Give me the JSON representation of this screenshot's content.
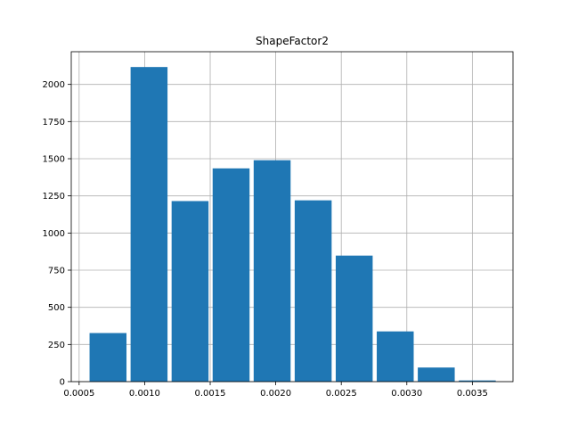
{
  "chart_data": {
    "type": "bar",
    "title": "ShapeFactor2",
    "xlabel": "",
    "ylabel": "",
    "xlim": [
      0.00044,
      0.00381
    ],
    "ylim": [
      0,
      2220
    ],
    "grid": true,
    "bar_color": "#1f77b4",
    "bar_width_fraction": 0.9,
    "bins": [
      {
        "start": 0.000564,
        "end": 0.000877,
        "count": 327
      },
      {
        "start": 0.000877,
        "end": 0.00119,
        "count": 2117
      },
      {
        "start": 0.00119,
        "end": 0.001503,
        "count": 1215
      },
      {
        "start": 0.001503,
        "end": 0.001816,
        "count": 1435
      },
      {
        "start": 0.001816,
        "end": 0.002129,
        "count": 1490
      },
      {
        "start": 0.002129,
        "end": 0.002442,
        "count": 1220
      },
      {
        "start": 0.002442,
        "end": 0.002755,
        "count": 848
      },
      {
        "start": 0.002755,
        "end": 0.003068,
        "count": 338
      },
      {
        "start": 0.003068,
        "end": 0.003381,
        "count": 95
      },
      {
        "start": 0.003381,
        "end": 0.003694,
        "count": 8
      }
    ],
    "x_ticks": [
      {
        "value": 0.0005,
        "label": "0.0005"
      },
      {
        "value": 0.001,
        "label": "0.0010"
      },
      {
        "value": 0.0015,
        "label": "0.0015"
      },
      {
        "value": 0.002,
        "label": "0.0020"
      },
      {
        "value": 0.0025,
        "label": "0.0025"
      },
      {
        "value": 0.003,
        "label": "0.0030"
      },
      {
        "value": 0.0035,
        "label": "0.0035"
      }
    ],
    "y_ticks": [
      {
        "value": 0,
        "label": "0"
      },
      {
        "value": 250,
        "label": "250"
      },
      {
        "value": 500,
        "label": "500"
      },
      {
        "value": 750,
        "label": "750"
      },
      {
        "value": 1000,
        "label": "1000"
      },
      {
        "value": 1250,
        "label": "1250"
      },
      {
        "value": 1500,
        "label": "1500"
      },
      {
        "value": 1750,
        "label": "1750"
      },
      {
        "value": 2000,
        "label": "2000"
      }
    ]
  }
}
